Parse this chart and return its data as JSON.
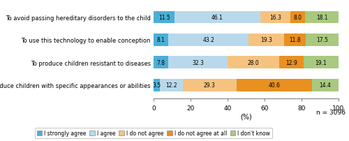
{
  "categories": [
    "To avoid passing hereditary disorders to the child",
    "To use this technology to enable conception",
    "To produce children resistant to diseases",
    "To produce children with specific appearances or abilities"
  ],
  "segments": {
    "I strongly agree": [
      11.5,
      8.1,
      7.8,
      3.5
    ],
    "I agree": [
      46.1,
      43.2,
      32.3,
      12.2
    ],
    "I do not agree": [
      16.3,
      19.3,
      28.0,
      29.3
    ],
    "I do not agree at all": [
      8.0,
      11.8,
      12.9,
      40.6
    ],
    "I don't know": [
      18.1,
      17.5,
      19.1,
      14.4
    ]
  },
  "colors": {
    "I strongly agree": "#4BAFD6",
    "I agree": "#B8D9EC",
    "I do not agree": "#F5C37F",
    "I do not agree at all": "#E89020",
    "I don't know": "#A8C97F"
  },
  "segment_order": [
    "I strongly agree",
    "I agree",
    "I do not agree",
    "I do not agree at all",
    "I don't know"
  ],
  "xlabel": "(%)",
  "xlim": [
    0,
    100
  ],
  "xticks": [
    0,
    20,
    40,
    60,
    80,
    100
  ],
  "n_label": "n = 3096",
  "bar_height": 0.55,
  "figsize": [
    5.0,
    2.03
  ],
  "dpi": 100
}
